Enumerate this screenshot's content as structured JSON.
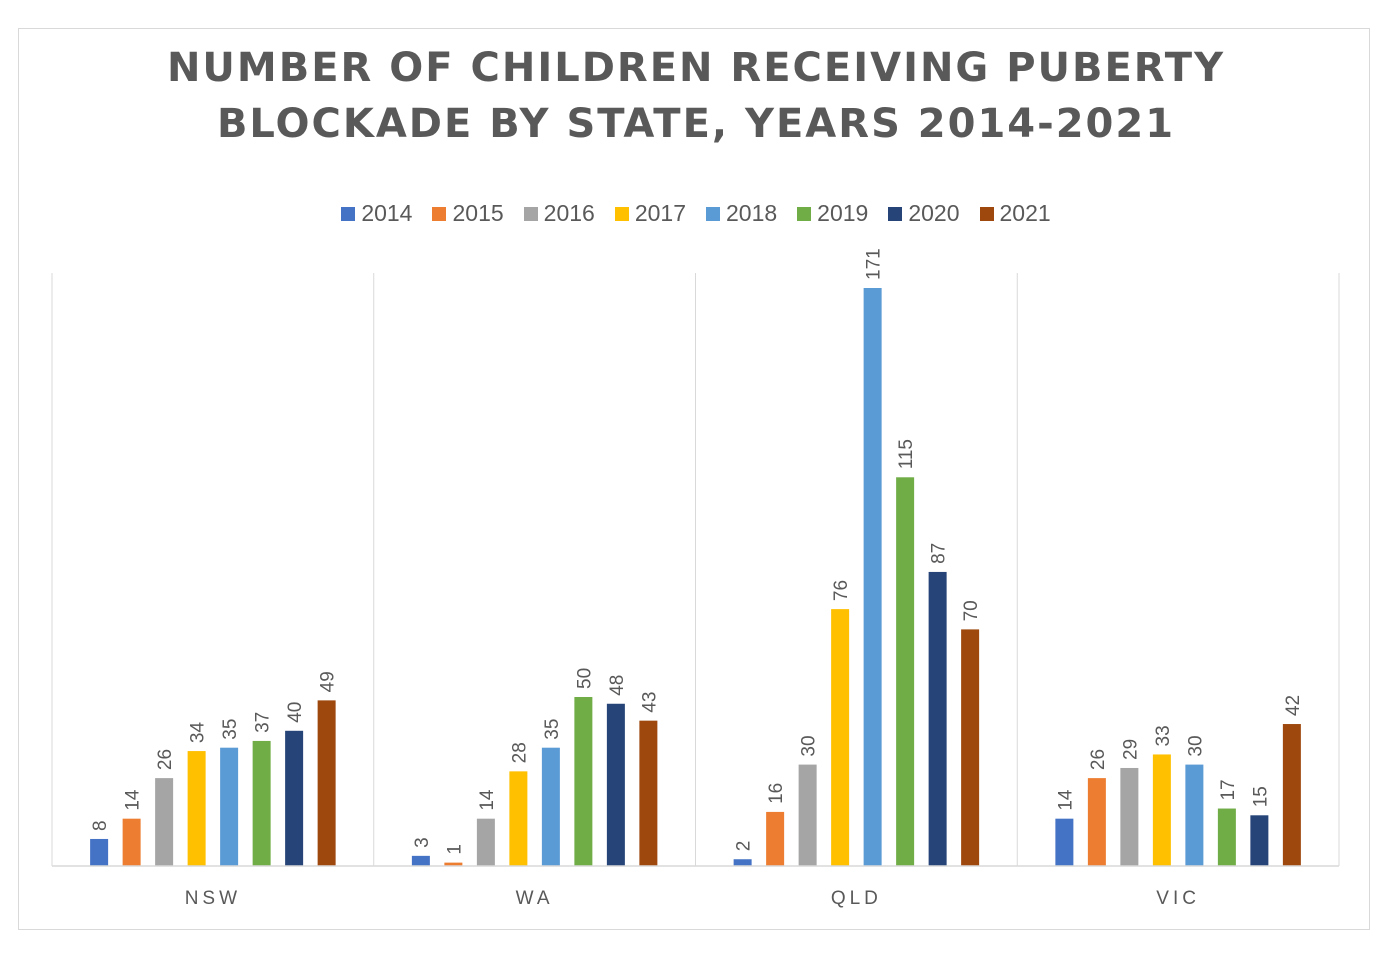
{
  "chart_data": {
    "type": "bar",
    "title_lines": [
      "NUMBER OF CHILDREN RECEIVING PUBERTY",
      "BLOCKADE BY STATE, YEARS 2014-2021"
    ],
    "categories": [
      "NSW",
      "WA",
      "QLD",
      "VIC"
    ],
    "series": [
      {
        "name": "2014",
        "color": "#4472C4",
        "values": [
          8,
          3,
          2,
          14
        ]
      },
      {
        "name": "2015",
        "color": "#ED7D31",
        "values": [
          14,
          1,
          16,
          26
        ]
      },
      {
        "name": "2016",
        "color": "#A5A5A5",
        "values": [
          26,
          14,
          30,
          29
        ]
      },
      {
        "name": "2017",
        "color": "#FFC000",
        "values": [
          34,
          28,
          76,
          33
        ]
      },
      {
        "name": "2018",
        "color": "#5B9BD5",
        "values": [
          35,
          35,
          171,
          30
        ]
      },
      {
        "name": "2019",
        "color": "#70AD47",
        "values": [
          37,
          50,
          115,
          17
        ]
      },
      {
        "name": "2020",
        "color": "#264478",
        "values": [
          40,
          48,
          87,
          15
        ]
      },
      {
        "name": "2021",
        "color": "#9E480E",
        "values": [
          49,
          43,
          70,
          42
        ]
      }
    ],
    "ylim": [
      0,
      175
    ],
    "xlabel": "",
    "ylabel": "",
    "legend_position": "top",
    "gridlines": "vertical category separators"
  }
}
